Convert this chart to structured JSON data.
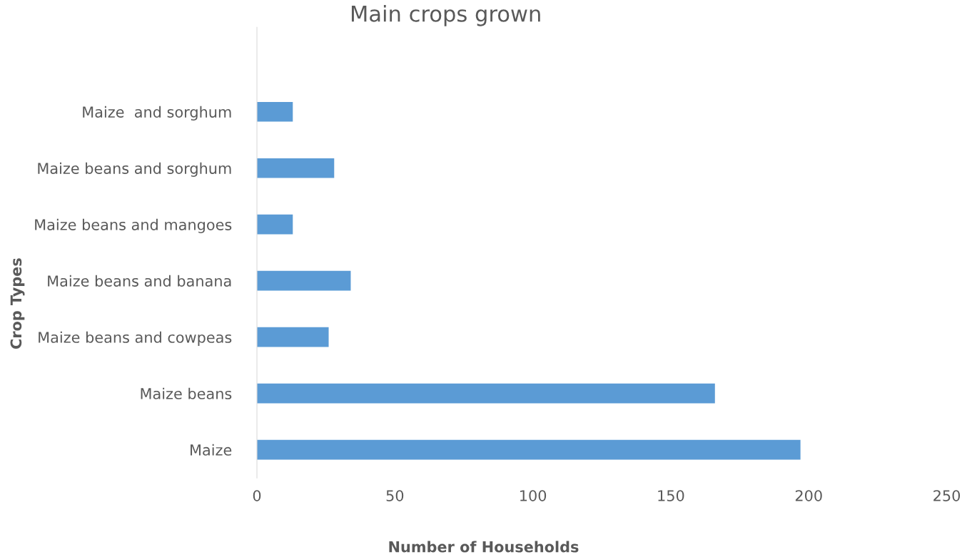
{
  "chart_data": {
    "type": "bar",
    "orientation": "horizontal",
    "title": "Main crops grown",
    "xlabel": "Number of Households",
    "ylabel": "Crop Types",
    "categories": [
      null,
      "Maize  and sorghum",
      "Maize beans and sorghum",
      "Maize beans and mangoes",
      "Maize beans and banana",
      "Maize beans and cowpeas",
      "Maize beans",
      "Maize"
    ],
    "values": [
      null,
      13,
      28,
      13,
      34,
      26,
      166,
      197
    ],
    "color": "#5b9bd5",
    "xlim": [
      0,
      250
    ],
    "xticks": [
      0,
      50,
      100,
      150,
      200,
      250
    ],
    "grid": false,
    "legend": false
  }
}
